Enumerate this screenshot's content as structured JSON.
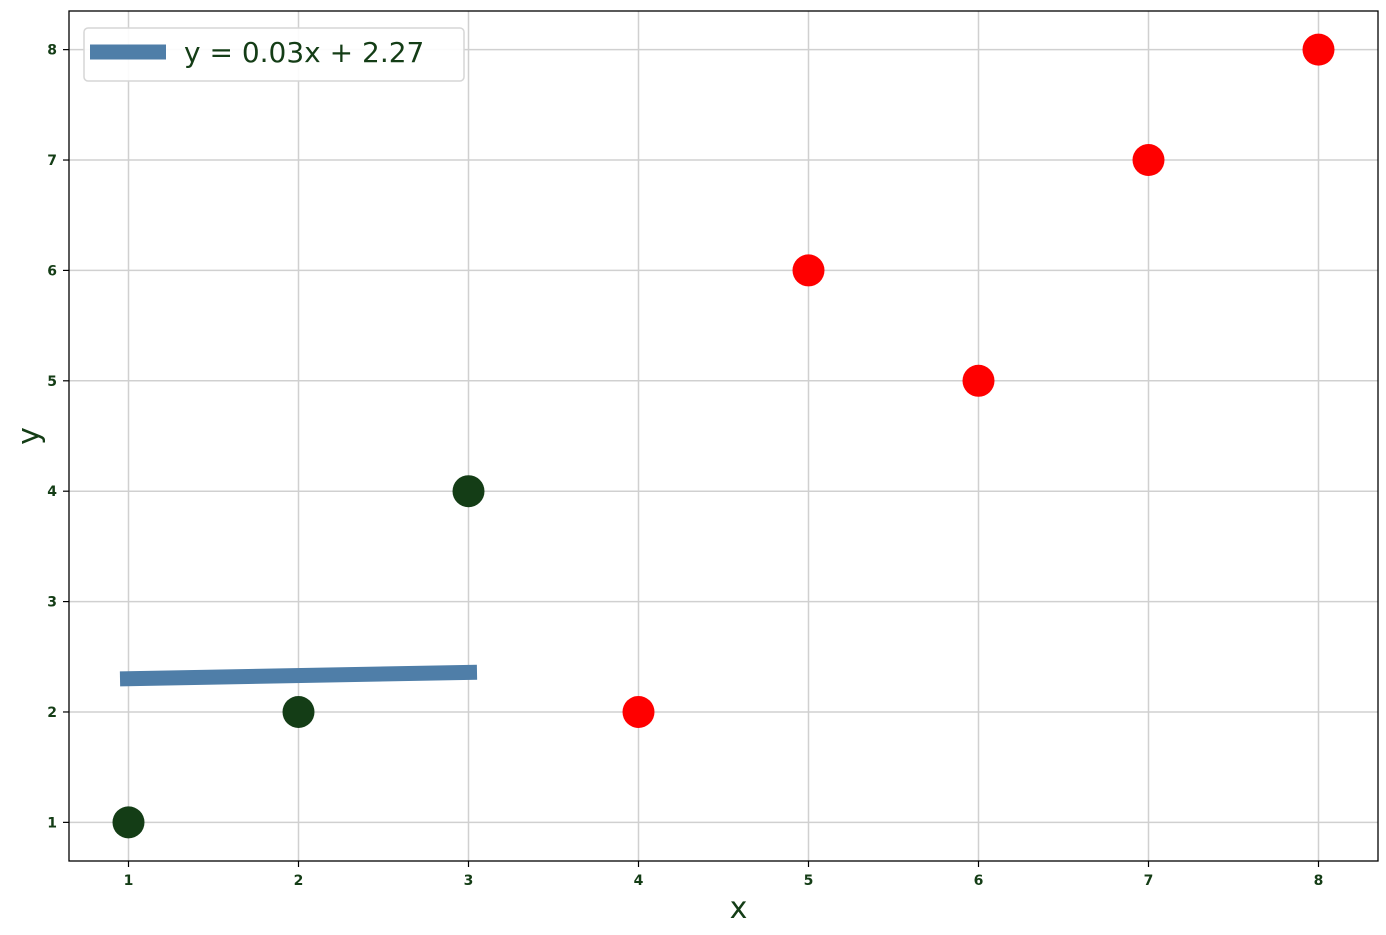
{
  "chart_data": {
    "type": "scatter",
    "title": "",
    "xlabel": "x",
    "ylabel": "y",
    "xlim": [
      0.65,
      8.35
    ],
    "ylim": [
      0.65,
      8.35
    ],
    "x_ticks": [
      1,
      2,
      3,
      4,
      5,
      6,
      7,
      8
    ],
    "y_ticks": [
      1,
      2,
      3,
      4,
      5,
      6,
      7,
      8
    ],
    "grid": true,
    "legend_position": "top-left",
    "series": [
      {
        "type": "scatter",
        "color": "#143d16",
        "points": [
          {
            "x": 1,
            "y": 1
          },
          {
            "x": 2,
            "y": 2
          },
          {
            "x": 3,
            "y": 4
          }
        ]
      },
      {
        "type": "scatter",
        "color": "#ff0000",
        "points": [
          {
            "x": 4,
            "y": 2
          },
          {
            "x": 5,
            "y": 6
          },
          {
            "x": 6,
            "y": 5
          },
          {
            "x": 7,
            "y": 7
          },
          {
            "x": 8,
            "y": 8
          }
        ]
      },
      {
        "type": "line",
        "name": "y = 0.03x + 2.27",
        "color": "#4f7ea8",
        "points": [
          {
            "x": 0.95,
            "y": 2.3
          },
          {
            "x": 3.05,
            "y": 2.36
          }
        ]
      }
    ],
    "colors": {
      "text": "#143d16",
      "grid": "#d0d0d0",
      "axis": "#000000"
    }
  }
}
